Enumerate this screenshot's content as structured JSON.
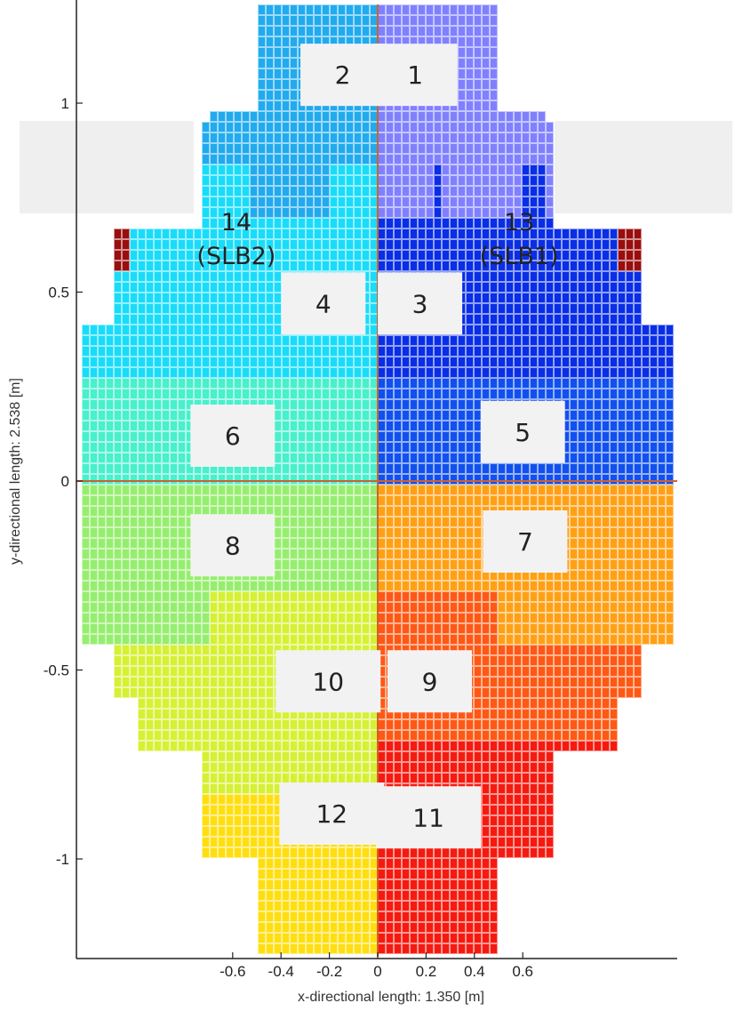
{
  "chart_data": {
    "type": "heatmap",
    "title": "",
    "xlabel": "x-directional length: 1.350 [m]",
    "ylabel": "y-directional length: 2.538 [m]",
    "xlim": [
      -0.675,
      0.675
    ],
    "ylim": [
      -1.269,
      1.269
    ],
    "x_ticks": [
      -0.6,
      -0.4,
      -0.2,
      0,
      0.2,
      0.4,
      0.6
    ],
    "x_tick_labels": [
      "-0.6",
      "-0.4",
      "-0.2",
      "0",
      "0.2",
      "0.4",
      "0.6"
    ],
    "y_ticks": [
      1,
      0.5,
      0,
      -0.5,
      -1
    ],
    "y_tick_labels": [
      "1",
      "0.5",
      "0",
      "-0.5",
      "-1"
    ],
    "cell_size_m": [
      0.027,
      0.03
    ],
    "regions": [
      {
        "id": "1",
        "label": "1",
        "color": "#8080ff",
        "label_pos": [
          0.155,
          1.075
        ]
      },
      {
        "id": "2",
        "label": "2",
        "color": "#22aaee",
        "label_pos": [
          -0.145,
          1.075
        ]
      },
      {
        "id": "3",
        "label": "3",
        "color": "#0a2ee6",
        "label_pos": [
          0.175,
          0.47
        ]
      },
      {
        "id": "4",
        "label": "4",
        "color": "#18dcfa",
        "label_pos": [
          -0.225,
          0.47
        ]
      },
      {
        "id": "5",
        "label": "5",
        "color": "#1150ee",
        "label_pos": [
          0.6,
          0.13
        ]
      },
      {
        "id": "6",
        "label": "6",
        "color": "#48f0cc",
        "label_pos": [
          -0.6,
          0.12
        ]
      },
      {
        "id": "7",
        "label": "7",
        "color": "#ffa014",
        "label_pos": [
          0.61,
          -0.16
        ]
      },
      {
        "id": "8",
        "label": "8",
        "color": "#96ee6e",
        "label_pos": [
          -0.6,
          -0.17
        ]
      },
      {
        "id": "9",
        "label": "9",
        "color": "#ff5814",
        "label_pos": [
          0.215,
          -0.53
        ]
      },
      {
        "id": "10",
        "label": "10",
        "color": "#d6f034",
        "label_pos": [
          -0.205,
          -0.53
        ]
      },
      {
        "id": "11",
        "label": "11",
        "color": "#f51a10",
        "label_pos": [
          0.21,
          -0.89
        ]
      },
      {
        "id": "12",
        "label": "12",
        "color": "#ffde10",
        "label_pos": [
          -0.19,
          -0.88
        ]
      },
      {
        "id": "13",
        "label": "13",
        "sublabel": "(SLB1)",
        "color": "#9a0e0e",
        "label_pos": [
          0.585,
          0.645
        ]
      },
      {
        "id": "14",
        "label": "14",
        "sublabel": "(SLB2)",
        "color": "#9a0e0e",
        "label_pos": [
          -0.585,
          0.645
        ]
      }
    ],
    "boundary_lines": {
      "color": "#d06030",
      "x": 0,
      "y": 0
    },
    "grid": false,
    "legend": "none"
  }
}
